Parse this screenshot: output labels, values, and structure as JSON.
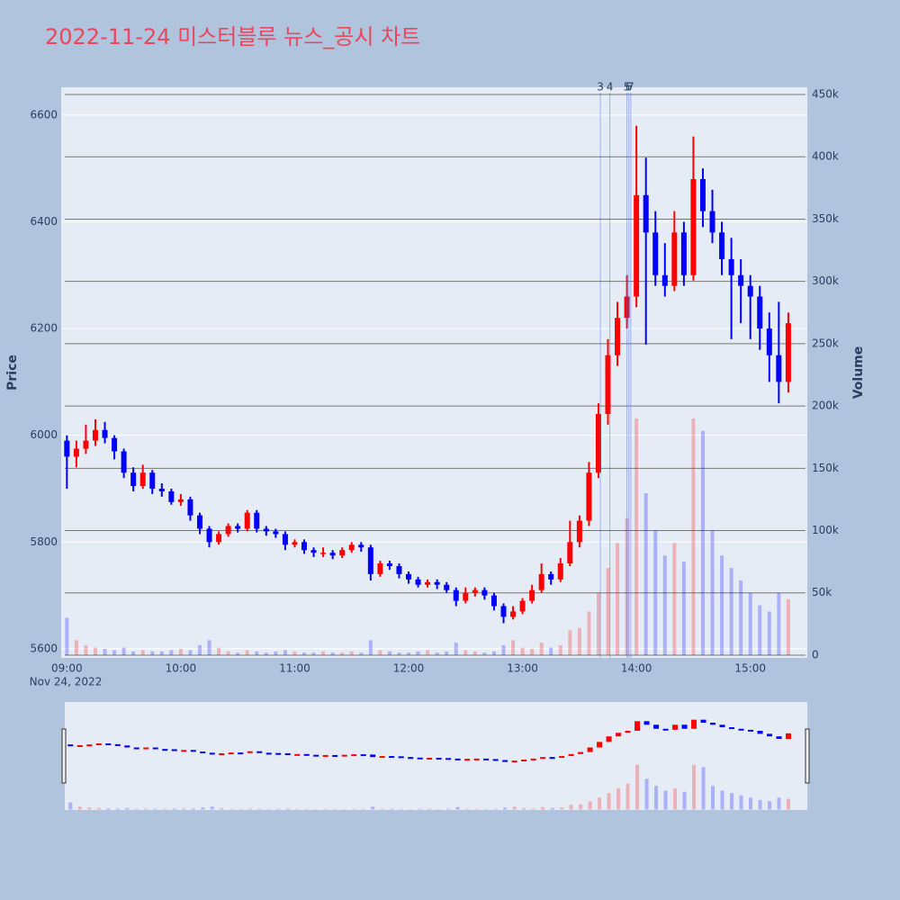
{
  "chart_data": {
    "type": "candlestick",
    "title": "2022-11-24 미스터블루 뉴스_공시 차트",
    "y_label": "Price",
    "y2_label": "Volume",
    "x_date_label": "Nov 24, 2022",
    "increasing_color": "#ff0000",
    "decreasing_color": "#0000ff",
    "x": [
      "09:00",
      "09:05",
      "09:10",
      "09:15",
      "09:20",
      "09:25",
      "09:30",
      "09:35",
      "09:40",
      "09:45",
      "09:50",
      "09:55",
      "10:00",
      "10:05",
      "10:10",
      "10:15",
      "10:20",
      "10:25",
      "10:30",
      "10:35",
      "10:40",
      "10:45",
      "10:50",
      "10:55",
      "11:00",
      "11:05",
      "11:10",
      "11:15",
      "11:20",
      "11:25",
      "11:30",
      "11:35",
      "11:40",
      "11:45",
      "11:50",
      "11:55",
      "12:00",
      "12:05",
      "12:10",
      "12:15",
      "12:20",
      "12:25",
      "12:30",
      "12:35",
      "12:40",
      "12:45",
      "12:50",
      "12:55",
      "13:00",
      "13:05",
      "13:10",
      "13:15",
      "13:20",
      "13:25",
      "13:30",
      "13:35",
      "13:40",
      "13:45",
      "13:50",
      "13:55",
      "14:00",
      "14:05",
      "14:10",
      "14:15",
      "14:20",
      "14:25",
      "14:30",
      "14:35",
      "14:40",
      "14:45",
      "14:50",
      "14:55",
      "15:00",
      "15:05",
      "15:10",
      "15:15",
      "15:20"
    ],
    "open": [
      5990,
      5960,
      5975,
      5990,
      6010,
      5995,
      5970,
      5930,
      5905,
      5930,
      5900,
      5895,
      5875,
      5880,
      5850,
      5825,
      5800,
      5815,
      5830,
      5825,
      5855,
      5825,
      5820,
      5815,
      5795,
      5800,
      5785,
      5780,
      5780,
      5775,
      5785,
      5795,
      5790,
      5740,
      5760,
      5755,
      5740,
      5730,
      5720,
      5725,
      5720,
      5710,
      5690,
      5705,
      5710,
      5700,
      5680,
      5660,
      5670,
      5690,
      5710,
      5740,
      5730,
      5760,
      5800,
      5840,
      5930,
      6040,
      6150,
      6220,
      6260,
      6450,
      6380,
      6300,
      6280,
      6380,
      6300,
      6480,
      6420,
      6380,
      6330,
      6300,
      6280,
      6260,
      6200,
      6150,
      6100
    ],
    "high": [
      6000,
      5990,
      6020,
      6030,
      6025,
      6000,
      5975,
      5940,
      5945,
      5935,
      5910,
      5900,
      5890,
      5885,
      5855,
      5830,
      5820,
      5835,
      5835,
      5860,
      5860,
      5830,
      5825,
      5820,
      5805,
      5805,
      5790,
      5790,
      5785,
      5790,
      5800,
      5800,
      5795,
      5765,
      5765,
      5760,
      5745,
      5735,
      5730,
      5730,
      5725,
      5715,
      5715,
      5715,
      5715,
      5705,
      5685,
      5680,
      5695,
      5720,
      5760,
      5745,
      5770,
      5840,
      5850,
      5950,
      6060,
      6180,
      6250,
      6300,
      6580,
      6520,
      6420,
      6360,
      6420,
      6400,
      6560,
      6500,
      6460,
      6400,
      6370,
      6330,
      6300,
      6280,
      6230,
      6250,
      6230
    ],
    "low": [
      5900,
      5940,
      5965,
      5980,
      5985,
      5955,
      5920,
      5895,
      5900,
      5890,
      5885,
      5870,
      5868,
      5840,
      5815,
      5790,
      5795,
      5810,
      5818,
      5820,
      5818,
      5812,
      5808,
      5785,
      5790,
      5778,
      5772,
      5772,
      5768,
      5770,
      5780,
      5782,
      5728,
      5735,
      5748,
      5732,
      5722,
      5715,
      5715,
      5712,
      5705,
      5680,
      5685,
      5698,
      5692,
      5672,
      5648,
      5655,
      5665,
      5685,
      5705,
      5720,
      5725,
      5755,
      5790,
      5830,
      5920,
      6020,
      6130,
      6200,
      6240,
      6170,
      6280,
      6260,
      6270,
      6280,
      6290,
      6390,
      6360,
      6300,
      6180,
      6210,
      6180,
      6160,
      6100,
      6060,
      6080
    ],
    "close": [
      5960,
      5975,
      5990,
      6010,
      5995,
      5970,
      5930,
      5905,
      5930,
      5900,
      5895,
      5875,
      5880,
      5850,
      5825,
      5800,
      5815,
      5830,
      5825,
      5855,
      5825,
      5820,
      5815,
      5795,
      5800,
      5785,
      5780,
      5780,
      5775,
      5785,
      5795,
      5790,
      5740,
      5760,
      5755,
      5740,
      5730,
      5720,
      5725,
      5720,
      5710,
      5690,
      5705,
      5710,
      5700,
      5680,
      5660,
      5670,
      5690,
      5710,
      5740,
      5730,
      5760,
      5800,
      5840,
      5930,
      6040,
      6150,
      6220,
      6260,
      6450,
      6380,
      6300,
      6280,
      6380,
      6300,
      6480,
      6420,
      6380,
      6330,
      6300,
      6280,
      6260,
      6200,
      6150,
      6100,
      6210
    ],
    "volume": [
      30000,
      12000,
      8000,
      6000,
      5000,
      4000,
      6000,
      3000,
      4000,
      3000,
      3000,
      4000,
      5000,
      4000,
      8000,
      12000,
      6000,
      3000,
      2000,
      4000,
      3000,
      2000,
      3000,
      4000,
      3000,
      2000,
      2000,
      3000,
      2000,
      2000,
      3000,
      2000,
      12000,
      4000,
      3000,
      2000,
      2000,
      3000,
      4000,
      2000,
      3000,
      10000,
      4000,
      3000,
      2000,
      3000,
      8000,
      12000,
      6000,
      5000,
      10000,
      6000,
      8000,
      20000,
      22000,
      35000,
      50000,
      70000,
      90000,
      110000,
      190000,
      130000,
      100000,
      80000,
      90000,
      75000,
      190000,
      180000,
      100000,
      80000,
      70000,
      60000,
      50000,
      40000,
      35000,
      50000,
      45000
    ],
    "markers": [
      {
        "x": "13:41",
        "label": "3"
      },
      {
        "x": "13:46",
        "label": "4"
      },
      {
        "x": "13:55",
        "label": "5"
      },
      {
        "x": "13:56",
        "label": "6"
      },
      {
        "x": "13:57",
        "label": "7"
      }
    ],
    "xlim": [
      "08:57",
      "15:30"
    ],
    "xticks": [
      "09:00",
      "10:00",
      "11:00",
      "12:00",
      "13:00",
      "14:00",
      "15:00"
    ],
    "ylim": [
      5583,
      6652
    ],
    "yticks": [
      5600,
      5800,
      6000,
      6200,
      6400,
      6600
    ],
    "y2lim": [
      -2200,
      455800
    ],
    "y2ticks": [
      0,
      {
        "value": 50000,
        "label": "50k"
      },
      {
        "value": 100000,
        "label": "100k"
      },
      {
        "value": 150000,
        "label": "150k"
      },
      {
        "value": 200000,
        "label": "200k"
      },
      {
        "value": 250000,
        "label": "250k"
      },
      {
        "value": 300000,
        "label": "300k"
      },
      {
        "value": 350000,
        "label": "350k"
      },
      {
        "value": 400000,
        "label": "400k"
      },
      {
        "value": 450000,
        "label": "450k"
      }
    ],
    "grid": true
  }
}
